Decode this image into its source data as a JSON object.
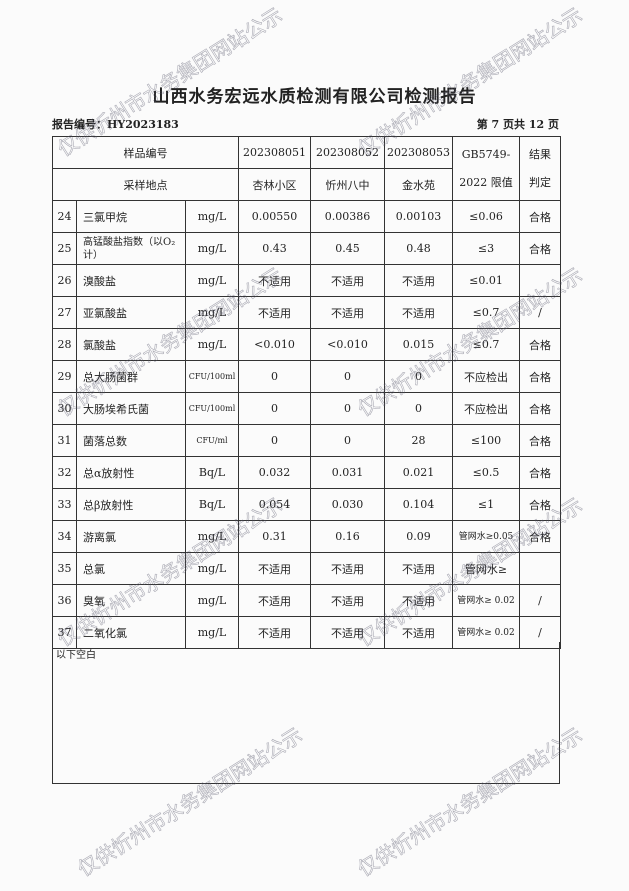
{
  "title": "山西水务宏远水质检测有限公司检测报告",
  "report_no": "报告编号：HY2023183",
  "page_info": "第 7 页共 12 页",
  "header": {
    "sample_no_label": "样品编号",
    "location_label": "采样地点",
    "samples": [
      "202308051",
      "202308052",
      "202308053"
    ],
    "locations": [
      "杏林小区",
      "忻州八中",
      "金水苑"
    ],
    "limit_label_1": "GB5749-",
    "limit_label_2": "2022 限值",
    "result_label_1": "结果",
    "result_label_2": "判定"
  },
  "rows": [
    {
      "no": "24",
      "name": "三氯甲烷",
      "unit": "mg/L",
      "v": [
        "0.00550",
        "0.00386",
        "0.00103"
      ],
      "limit": "≤0.06",
      "result": "合格"
    },
    {
      "no": "25",
      "name": "高锰酸盐指数（以O₂计）",
      "unit": "mg/L",
      "v": [
        "0.43",
        "0.45",
        "0.48"
      ],
      "limit": "≤3",
      "result": "合格"
    },
    {
      "no": "26",
      "name": "溴酸盐",
      "unit": "mg/L",
      "v": [
        "不适用",
        "不适用",
        "不适用"
      ],
      "limit": "≤0.01",
      "result": ""
    },
    {
      "no": "27",
      "name": "亚氯酸盐",
      "unit": "mg/L",
      "v": [
        "不适用",
        "不适用",
        "不适用"
      ],
      "limit": "≤0.7",
      "result": "/"
    },
    {
      "no": "28",
      "name": "氯酸盐",
      "unit": "mg/L",
      "v": [
        "<0.010",
        "<0.010",
        "0.015"
      ],
      "limit": "≤0.7",
      "result": "合格"
    },
    {
      "no": "29",
      "name": "总大肠菌群",
      "unit": "CFU/100ml",
      "v": [
        "0",
        "0",
        "0"
      ],
      "limit": "不应检出",
      "result": "合格"
    },
    {
      "no": "30",
      "name": "大肠埃希氏菌",
      "unit": "CFU/100ml",
      "v": [
        "0",
        "0",
        "0"
      ],
      "limit": "不应检出",
      "result": "合格"
    },
    {
      "no": "31",
      "name": "菌落总数",
      "unit": "CFU/ml",
      "v": [
        "0",
        "0",
        "28"
      ],
      "limit": "≤100",
      "result": "合格"
    },
    {
      "no": "32",
      "name": "总α放射性",
      "unit": "Bq/L",
      "v": [
        "0.032",
        "0.031",
        "0.021"
      ],
      "limit": "≤0.5",
      "result": "合格"
    },
    {
      "no": "33",
      "name": "总β放射性",
      "unit": "Bq/L",
      "v": [
        "0.054",
        "0.030",
        "0.104"
      ],
      "limit": "≤1",
      "result": "合格"
    },
    {
      "no": "34",
      "name": "游离氯",
      "unit": "mg/L",
      "v": [
        "0.31",
        "0.16",
        "0.09"
      ],
      "limit": "管网水≥0.05",
      "result": "合格"
    },
    {
      "no": "35",
      "name": "总氯",
      "unit": "mg/L",
      "v": [
        "不适用",
        "不适用",
        "不适用"
      ],
      "limit": "管网水≥",
      "result": ""
    },
    {
      "no": "36",
      "name": "臭氧",
      "unit": "mg/L",
      "v": [
        "不适用",
        "不适用",
        "不适用"
      ],
      "limit": "管网水≥ 0.02",
      "result": "/"
    },
    {
      "no": "37",
      "name": "二氧化氯",
      "unit": "mg/L",
      "v": [
        "不适用",
        "不适用",
        "不适用"
      ],
      "limit": "管网水≥ 0.02",
      "result": "/"
    }
  ],
  "footer_note": "以下空白",
  "watermark": "仅供忻州市水务集团网站公示"
}
